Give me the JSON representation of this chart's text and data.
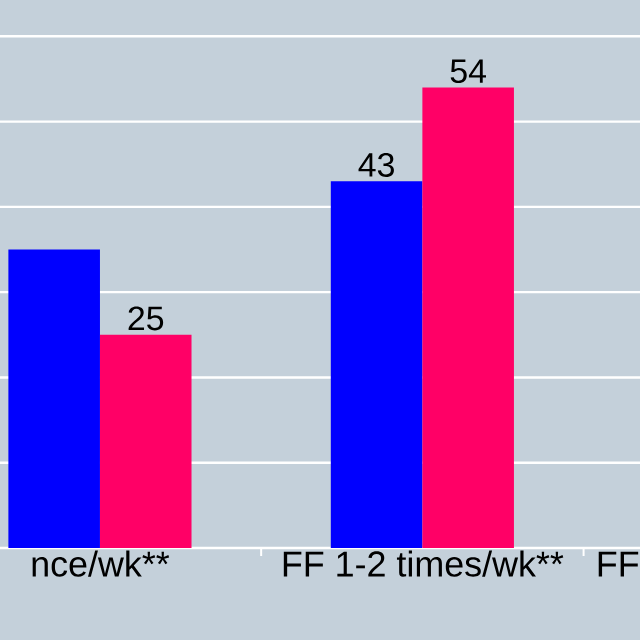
{
  "chart_data": {
    "type": "bar",
    "categories": [
      "nce/wk**",
      "FF 1-2 times/wk**",
      "FF"
    ],
    "series": [
      {
        "color": "#0000ff",
        "values": [
          35,
          43,
          null
        ],
        "value_labels": [
          null,
          "43",
          null
        ]
      },
      {
        "color": "#ff0066",
        "values": [
          25,
          54,
          null
        ],
        "value_labels": [
          "25",
          "54",
          null
        ]
      }
    ],
    "grid": "y",
    "tick_labels": "x"
  }
}
